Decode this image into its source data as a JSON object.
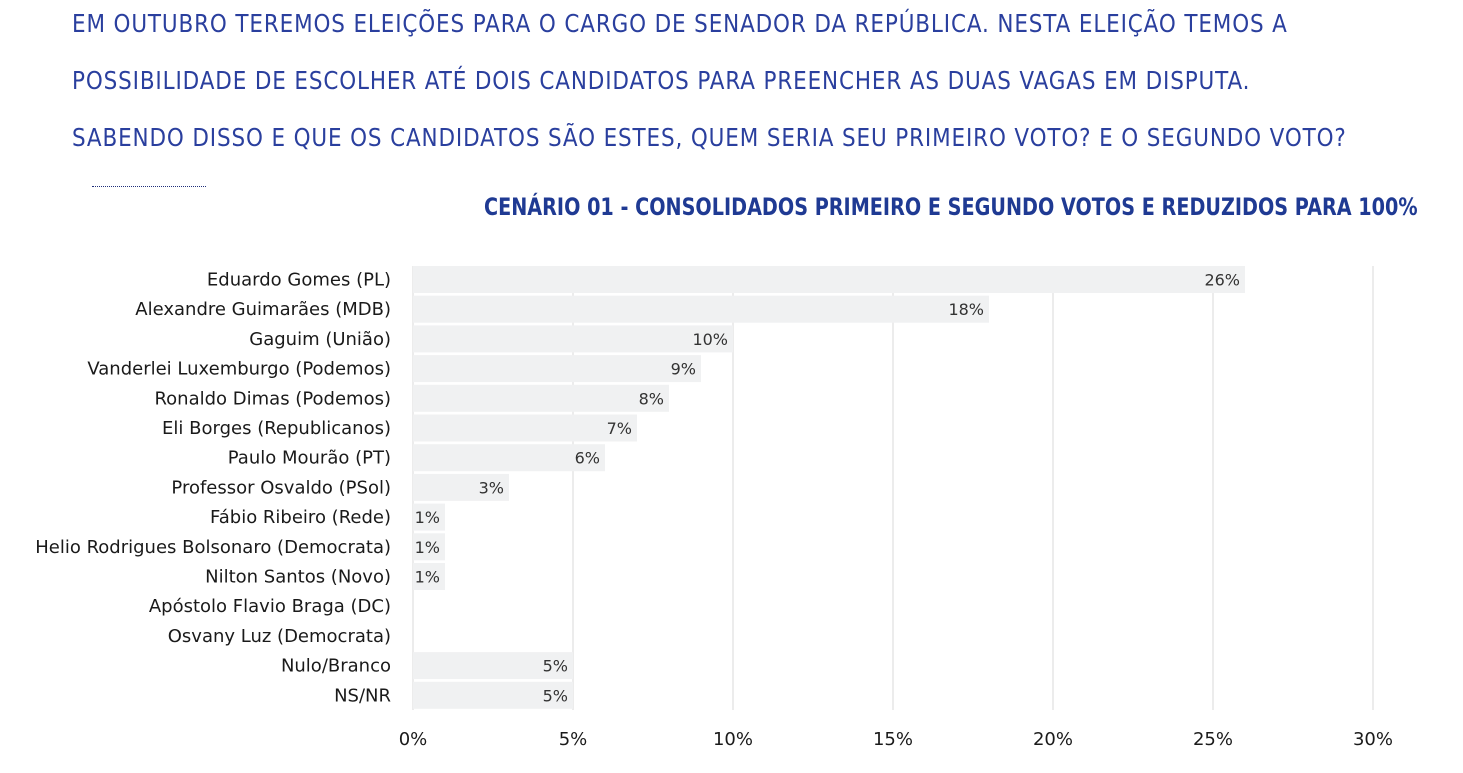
{
  "intro": {
    "line1": "EM OUTUBRO TEREMOS ELEIÇÕES PARA O CARGO DE SENADOR DA REPÚBLICA. NESTA ELEIÇÃO TEMOS A",
    "line2": "POSSIBILIDADE DE ESCOLHER ATÉ DOIS CANDIDATOS PARA PREENCHER AS DUAS VAGAS EM DISPUTA.",
    "line3": "SABENDO DISSO E QUE OS CANDIDATOS SÃO ESTES, QUEM SERIA SEU PRIMEIRO VOTO? E O SEGUNDO VOTO?"
  },
  "colors": {
    "intro_text": "#2a3f9e",
    "title_text": "#1f3a93",
    "bar_fill": "#f0f1f2",
    "gridline": "#d9d9d9"
  },
  "chart_data": {
    "type": "bar",
    "orientation": "horizontal",
    "title": "CENÁRIO 01 - CONSOLIDADOS PRIMEIRO E SEGUNDO VOTOS E REDUZIDOS PARA 100%",
    "xlabel": "",
    "ylabel": "",
    "categories": [
      "Eduardo Gomes (PL)",
      "Alexandre Guimarães (MDB)",
      "Gaguim (União)",
      "Vanderlei Luxemburgo (Podemos)",
      "Ronaldo Dimas (Podemos)",
      "Eli Borges (Republicanos)",
      "Paulo Mourão (PT)",
      "Professor Osvaldo (PSol)",
      "Fábio Ribeiro (Rede)",
      "Helio Rodrigues Bolsonaro (Democrata)",
      "Nilton Santos (Novo)",
      "Apóstolo Flavio Braga (DC)",
      "Osvany Luz (Democrata)",
      "Nulo/Branco",
      "NS/NR"
    ],
    "values": [
      26,
      18,
      10,
      9,
      8,
      7,
      6,
      3,
      1,
      1,
      1,
      0,
      0,
      5,
      5
    ],
    "value_labels": [
      "26%",
      "18%",
      "10%",
      "9%",
      "8%",
      "7%",
      "6%",
      "3%",
      "1%",
      "1%",
      "1%",
      "",
      "",
      "5%",
      "5%"
    ],
    "xlim": [
      0,
      30
    ],
    "xticks": [
      0,
      5,
      10,
      15,
      20,
      25,
      30
    ],
    "xtick_labels": [
      "0%",
      "5%",
      "10%",
      "15%",
      "20%",
      "25%",
      "30%"
    ],
    "grid": true,
    "legend": false
  }
}
